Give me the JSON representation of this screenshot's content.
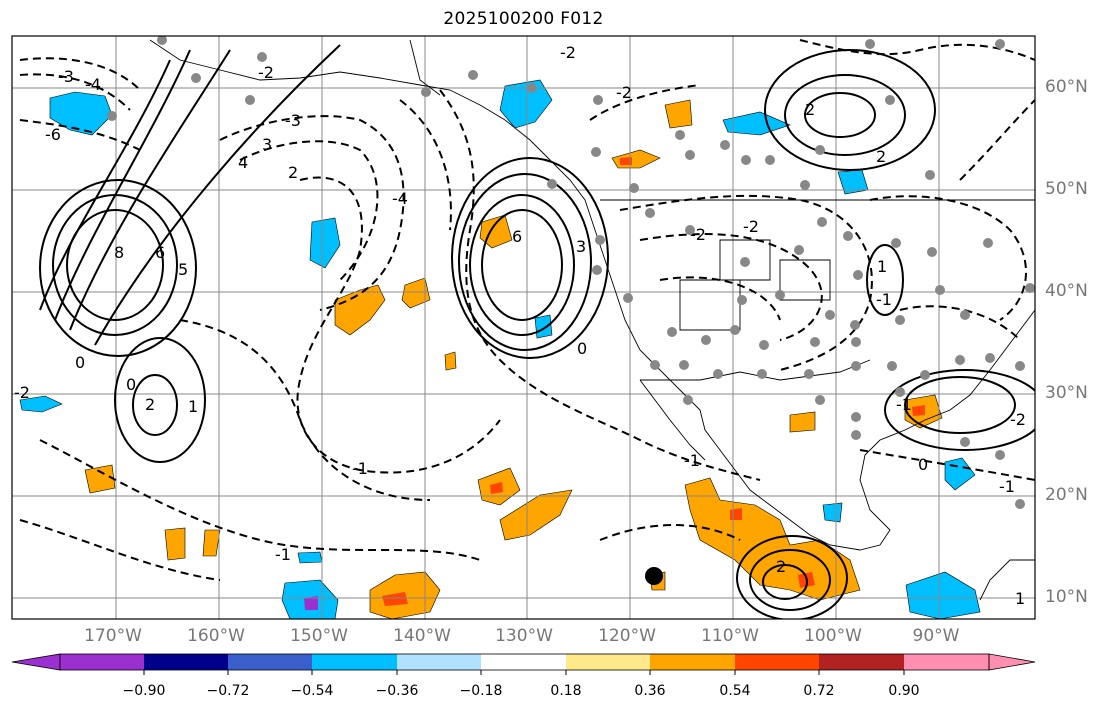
{
  "title": "2025100200 F012",
  "lat_labels": [
    "60°N",
    "50°N",
    "40°N",
    "30°N",
    "20°N",
    "10°N"
  ],
  "lon_labels": [
    "170°W",
    "160°W",
    "150°W",
    "140°W",
    "130°W",
    "120°W",
    "110°W",
    "100°W",
    "90°W"
  ],
  "contour_labels": [
    "-3",
    "-4",
    "-6",
    "8",
    "6",
    "5",
    "4",
    "3",
    "2",
    "-2",
    "-3",
    "-4",
    "6",
    "3",
    "-2",
    "-2",
    "-2",
    "-2",
    "2",
    "2",
    "1",
    "-1",
    "-1",
    "-2",
    "-1",
    "0",
    "0",
    "0",
    "0",
    "-1",
    "1",
    "2",
    "-2",
    "-1",
    "-1",
    "2",
    "1"
  ],
  "colorbar": {
    "ticks": [
      "−0.90",
      "−0.72",
      "−0.54",
      "−0.36",
      "−0.18",
      "0.18",
      "0.36",
      "0.54",
      "0.72",
      "0.90"
    ],
    "colors": [
      "#9b30d0",
      "#00008b",
      "#3a5fcd",
      "#00bfff",
      "#b0e2ff",
      "#ffffff",
      "#ffe98a",
      "#ffa500",
      "#ff4500",
      "#b22222",
      "#ff8fb0"
    ]
  },
  "colors": {
    "contour": "#000000",
    "grid": "#888888",
    "station": "#888888",
    "label": "#777777"
  }
}
